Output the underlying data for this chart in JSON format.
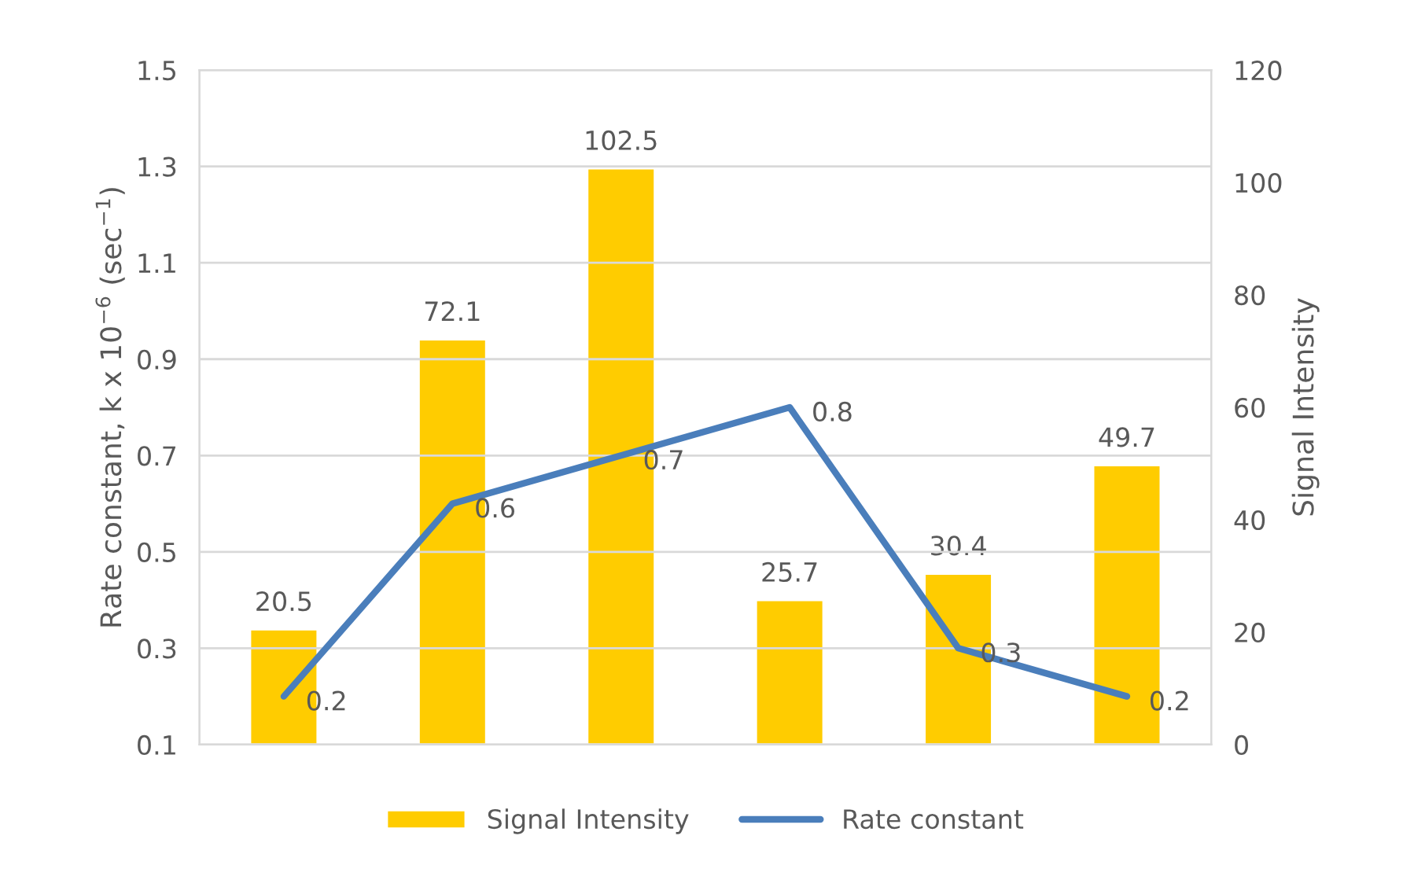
{
  "chart_data": {
    "type": "bar",
    "ylabel": "Rate constant, k x 10$^{−6}$ (sec$^{−1}$)",
    "y2label": "Signal Intensity",
    "categories": [
      null,
      null,
      null,
      null,
      null,
      null
    ],
    "series": [
      {
        "name": "Signal Intensity",
        "axis": "y2",
        "color": "#ffcc00",
        "values": [
          20.5,
          72.1,
          102.5,
          25.7,
          30.4,
          49.7
        ]
      },
      {
        "name": "Rate constant",
        "type": "line",
        "color": "#4a7ebb",
        "values": [
          0.2,
          0.6,
          0.7,
          0.8,
          0.3,
          0.2
        ]
      }
    ],
    "ylim": [
      0.1,
      1.5
    ],
    "yticks": [
      0.1,
      0.3,
      0.5,
      0.7,
      0.9,
      1.1,
      1.3,
      1.5
    ],
    "y2lim": [
      0,
      120
    ],
    "y2ticks": [
      0,
      20,
      40,
      60,
      80,
      100,
      120
    ],
    "data_labels": true,
    "grid": "y",
    "legend": "bottom",
    "marker": "none",
    "line_style": "solid"
  }
}
